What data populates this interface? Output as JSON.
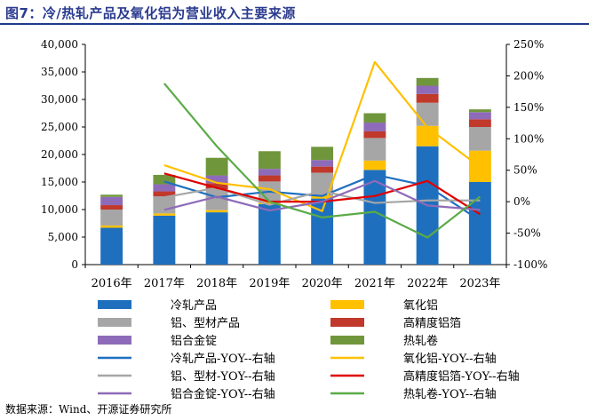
{
  "title": "图7：冷/热轧产品及氧化铝为营业收入主要来源",
  "source": "数据来源：Wind、开源证券研究所",
  "colors": {
    "cold_rolled": "#1f6fbf",
    "alumina": "#ffc000",
    "profile": "#a6a6a6",
    "foil": "#c0392b",
    "ingot": "#8e6bb8",
    "hot_coil": "#70963b",
    "yoy_cold": "#1f6fbf",
    "yoy_alumina": "#ffc000",
    "yoy_profile": "#a6a6a6",
    "yoy_foil": "#e00000",
    "yoy_ingot": "#8e6bb8",
    "yoy_hot": "#5aab46"
  },
  "chart_data": {
    "type": "bar",
    "stacked": true,
    "categories": [
      "2016年",
      "2017年",
      "2018年",
      "2019年",
      "2020年",
      "2021年",
      "2022年",
      "2023年"
    ],
    "left_axis": {
      "ylim": [
        0,
        40000
      ],
      "ticks": [
        "0",
        "5,000",
        "10,000",
        "15,000",
        "20,000",
        "25,000",
        "30,000",
        "35,000",
        "40,000"
      ]
    },
    "right_axis": {
      "ylim": [
        -100,
        250
      ],
      "ticks": [
        "-100%",
        "-50%",
        "0%",
        "50%",
        "100%",
        "150%",
        "200%",
        "250%"
      ]
    },
    "series": [
      {
        "name": "冷轧产品",
        "key": "cold_rolled",
        "values": [
          6700,
          8900,
          9500,
          11000,
          12000,
          17200,
          21500,
          15000
        ]
      },
      {
        "name": "氧化铝",
        "key": "alumina",
        "values": [
          400,
          400,
          400,
          500,
          500,
          1700,
          3700,
          5700
        ]
      },
      {
        "name": "铝、型材产品",
        "key": "profile",
        "values": [
          2900,
          3100,
          3800,
          3600,
          4200,
          4100,
          4200,
          4300
        ]
      },
      {
        "name": "高精度铝箔",
        "key": "foil",
        "values": [
          800,
          900,
          1100,
          1100,
          1100,
          1200,
          1600,
          1400
        ]
      },
      {
        "name": "铝合金锭",
        "key": "ingot",
        "values": [
          1500,
          1300,
          1400,
          1200,
          1200,
          1600,
          1500,
          1300
        ]
      },
      {
        "name": "热轧卷",
        "key": "hot_coil",
        "values": [
          400,
          1700,
          3200,
          3200,
          2400,
          1700,
          1400,
          500
        ]
      }
    ],
    "yoy_series": [
      {
        "name": "冷轧产品-YOY--右轴",
        "key": "yoy_cold",
        "values": [
          null,
          32,
          7,
          16,
          9,
          43,
          25,
          -30
        ]
      },
      {
        "name": "氧化铝-YOY--右轴",
        "key": "yoy_alumina",
        "values": [
          null,
          58,
          30,
          20,
          -15,
          222,
          118,
          55
        ]
      },
      {
        "name": "铝、型材-YOY--右轴",
        "key": "yoy_profile",
        "values": [
          null,
          7,
          22,
          -5,
          17,
          -2,
          2,
          2
        ]
      },
      {
        "name": "高精度铝箔-YOY--右轴",
        "key": "yoy_foil",
        "values": [
          null,
          45,
          22,
          0,
          0,
          9,
          33,
          -20
        ]
      },
      {
        "name": "铝合金锭-YOY--右轴",
        "key": "yoy_ingot",
        "values": [
          null,
          -13,
          8,
          -14,
          0,
          33,
          -6,
          -13
        ]
      },
      {
        "name": "热轧卷-YOY--右轴",
        "key": "yoy_hot",
        "values": [
          null,
          188,
          88,
          0,
          -25,
          -16,
          -57,
          8
        ]
      }
    ]
  }
}
